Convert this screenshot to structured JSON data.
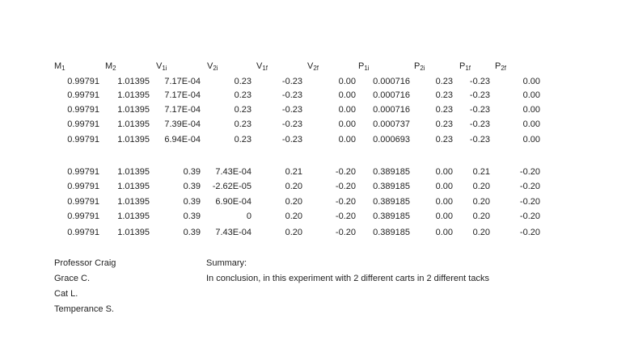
{
  "table": {
    "headers": [
      {
        "main": "M",
        "sub": "1"
      },
      {
        "main": "M",
        "sub": "2"
      },
      {
        "main": "V",
        "sub": "1i"
      },
      {
        "main": "V",
        "sub": "2i"
      },
      {
        "main": "V",
        "sub": "1f"
      },
      {
        "main": "V",
        "sub": "2f"
      },
      {
        "main": "P",
        "sub": "1i"
      },
      {
        "main": "P",
        "sub": "2i"
      },
      {
        "main": "P",
        "sub": "1f"
      },
      {
        "main": "P",
        "sub": "2f"
      }
    ],
    "groups": [
      [
        [
          "0.99791",
          "1.01395",
          "7.17E-04",
          "0.23",
          "-0.23",
          "0.00",
          "0.000716",
          "0.23",
          "-0.23",
          "0.00"
        ],
        [
          "0.99791",
          "1.01395",
          "7.17E-04",
          "0.23",
          "-0.23",
          "0.00",
          "0.000716",
          "0.23",
          "-0.23",
          "0.00"
        ],
        [
          "0.99791",
          "1.01395",
          "7.17E-04",
          "0.23",
          "-0.23",
          "0.00",
          "0.000716",
          "0.23",
          "-0.23",
          "0.00"
        ],
        [
          "0.99791",
          "1.01395",
          "7.39E-04",
          "0.23",
          "-0.23",
          "0.00",
          "0.000737",
          "0.23",
          "-0.23",
          "0.00"
        ],
        [
          "0.99791",
          "1.01395",
          "6.94E-04",
          "0.23",
          "-0.23",
          "0.00",
          "0.000693",
          "0.23",
          "-0.23",
          "0.00"
        ]
      ],
      [
        [
          "0.99791",
          "1.01395",
          "0.39",
          "7.43E-04",
          "0.21",
          "-0.20",
          "0.389185",
          "0.00",
          "0.21",
          "-0.20"
        ],
        [
          "0.99791",
          "1.01395",
          "0.39",
          "-2.62E-05",
          "0.20",
          "-0.20",
          "0.389185",
          "0.00",
          "0.20",
          "-0.20"
        ],
        [
          "0.99791",
          "1.01395",
          "0.39",
          "6.90E-04",
          "0.20",
          "-0.20",
          "0.389185",
          "0.00",
          "0.20",
          "-0.20"
        ],
        [
          "0.99791",
          "1.01395",
          "0.39",
          "0",
          "0.20",
          "-0.20",
          "0.389185",
          "0.00",
          "0.20",
          "-0.20"
        ],
        [
          "0.99791",
          "1.01395",
          "0.39",
          "7.43E-04",
          "0.20",
          "-0.20",
          "0.389185",
          "0.00",
          "0.20",
          "-0.20"
        ]
      ]
    ]
  },
  "names": [
    "Professor Craig",
    "Grace C.",
    "Cat L.",
    "Temperance S."
  ],
  "summary": {
    "title": "Summary:",
    "text": "In conclusion, in this experiment with 2 different carts in 2 different tacks"
  }
}
